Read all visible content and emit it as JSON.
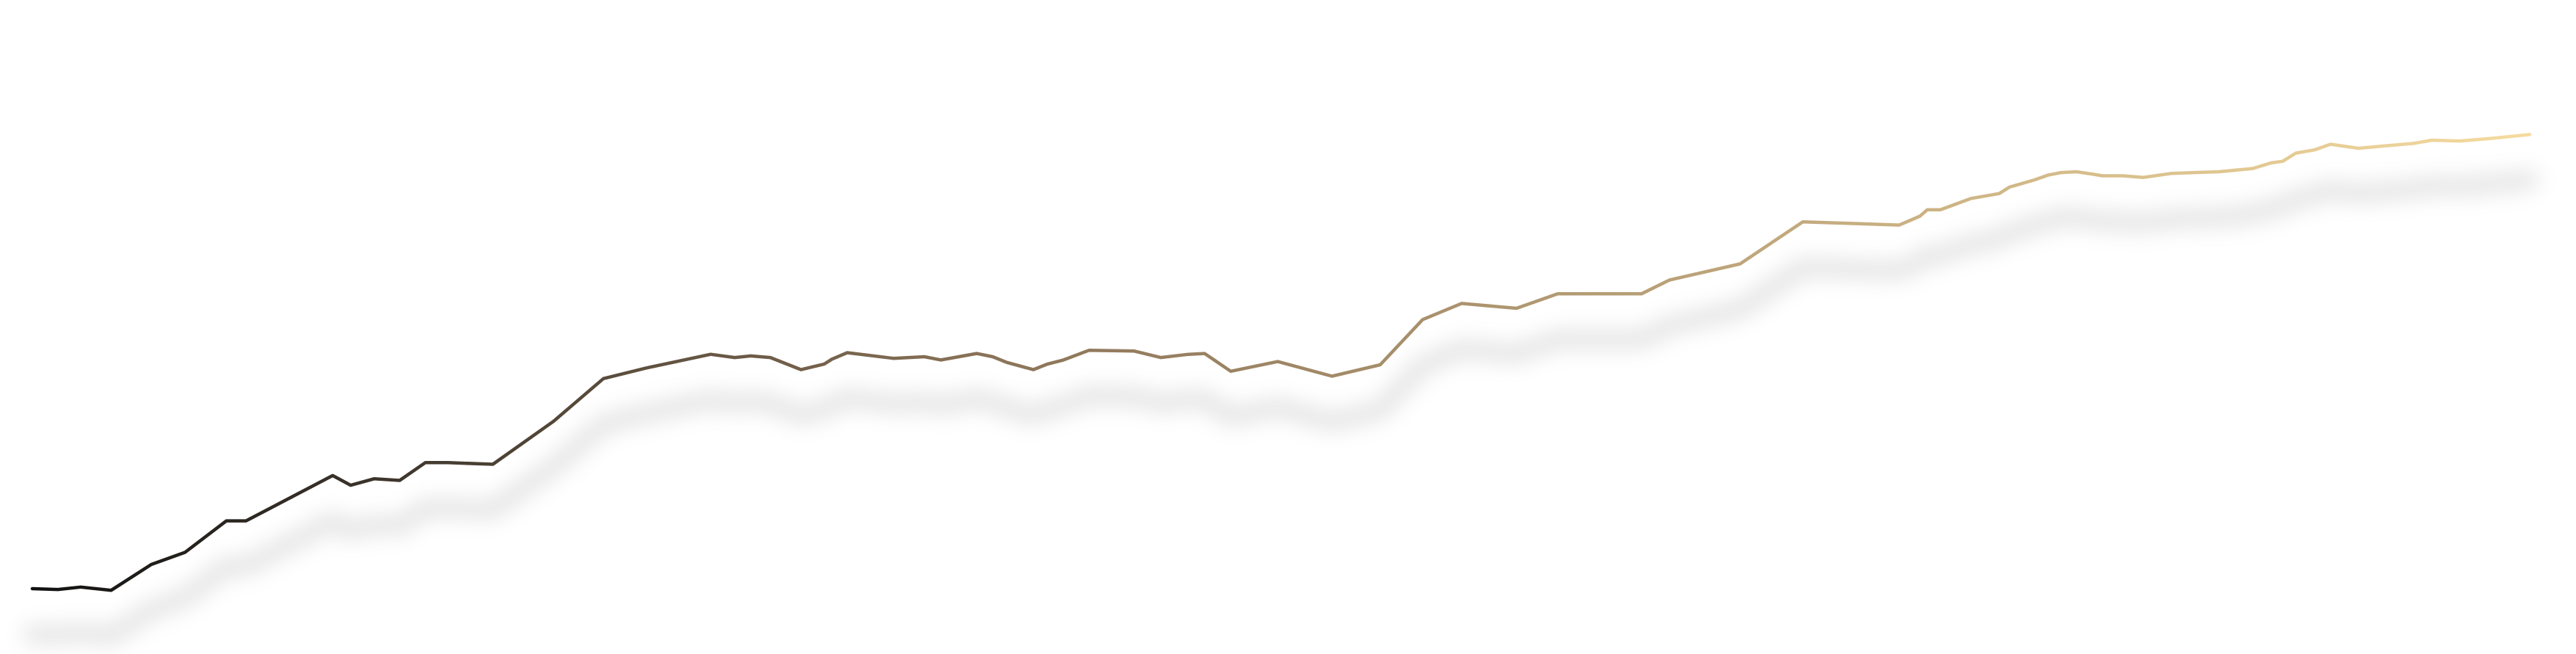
{
  "chart_data": {
    "type": "line",
    "title": "",
    "xlabel": "",
    "ylabel": "",
    "axes_visible": false,
    "grid": false,
    "legend": "none",
    "x_range": [
      0,
      100
    ],
    "y_range": [
      0,
      100
    ],
    "colors": {
      "gradient_start": "#111111",
      "gradient_mid": "#8a7358",
      "gradient_end": "#f6dca0",
      "shadow": "#000000"
    },
    "series": [
      {
        "points": [
          [
            0.0,
            0.0
          ],
          [
            1.02,
            -0.14
          ],
          [
            1.93,
            0.28
          ],
          [
            3.14,
            -0.28
          ],
          [
            4.74,
            4.2
          ],
          [
            6.08,
            6.3
          ],
          [
            7.73,
            11.76
          ],
          [
            8.51,
            11.76
          ],
          [
            11.96,
            19.61
          ],
          [
            12.68,
            17.93
          ],
          [
            13.61,
            19.05
          ],
          [
            14.63,
            18.77
          ],
          [
            15.65,
            21.85
          ],
          [
            16.55,
            21.85
          ],
          [
            18.34,
            21.57
          ],
          [
            20.75,
            28.99
          ],
          [
            22.74,
            36.41
          ],
          [
            24.44,
            38.24
          ],
          [
            27.01,
            40.62
          ],
          [
            27.97,
            40.06
          ],
          [
            28.6,
            40.34
          ],
          [
            29.39,
            40.06
          ],
          [
            30.61,
            37.96
          ],
          [
            31.54,
            38.94
          ],
          [
            31.84,
            39.78
          ],
          [
            32.45,
            40.9
          ],
          [
            34.29,
            39.92
          ],
          [
            35.52,
            40.2
          ],
          [
            36.18,
            39.64
          ],
          [
            37.6,
            40.76
          ],
          [
            38.24,
            40.2
          ],
          [
            38.8,
            39.22
          ],
          [
            39.86,
            37.96
          ],
          [
            40.43,
            38.94
          ],
          [
            41.06,
            39.64
          ],
          [
            42.08,
            41.32
          ],
          [
            43.88,
            41.18
          ],
          [
            44.93,
            40.06
          ],
          [
            46.04,
            40.62
          ],
          [
            46.68,
            40.76
          ],
          [
            47.72,
            37.68
          ],
          [
            49.59,
            39.36
          ],
          [
            51.75,
            36.83
          ],
          [
            53.67,
            38.8
          ],
          [
            55.36,
            46.64
          ],
          [
            56.91,
            49.44
          ],
          [
            59.1,
            48.6
          ],
          [
            60.74,
            51.12
          ],
          [
            61.56,
            51.12
          ],
          [
            64.08,
            51.12
          ],
          [
            65.19,
            53.5
          ],
          [
            68.0,
            56.3
          ],
          [
            70.5,
            63.59
          ],
          [
            74.34,
            63.03
          ],
          [
            75.16,
            64.57
          ],
          [
            75.46,
            65.69
          ],
          [
            75.98,
            65.69
          ],
          [
            77.21,
            67.65
          ],
          [
            78.32,
            68.49
          ],
          [
            78.73,
            69.61
          ],
          [
            79.73,
            70.87
          ],
          [
            80.28,
            71.71
          ],
          [
            80.79,
            72.13
          ],
          [
            81.39,
            72.27
          ],
          [
            82.05,
            71.85
          ],
          [
            82.43,
            71.57
          ],
          [
            83.24,
            71.57
          ],
          [
            84.07,
            71.29
          ],
          [
            85.19,
            71.99
          ],
          [
            86.06,
            72.13
          ],
          [
            87.07,
            72.27
          ],
          [
            88.41,
            72.83
          ],
          [
            89.15,
            73.81
          ],
          [
            89.61,
            74.09
          ],
          [
            90.13,
            75.49
          ],
          [
            90.87,
            76.05
          ],
          [
            91.51,
            77.03
          ],
          [
            92.62,
            76.33
          ],
          [
            93.68,
            76.75
          ],
          [
            94.81,
            77.17
          ],
          [
            95.55,
            77.73
          ],
          [
            96.66,
            77.59
          ],
          [
            97.85,
            78.01
          ],
          [
            99.44,
            78.71
          ]
        ]
      }
    ]
  }
}
